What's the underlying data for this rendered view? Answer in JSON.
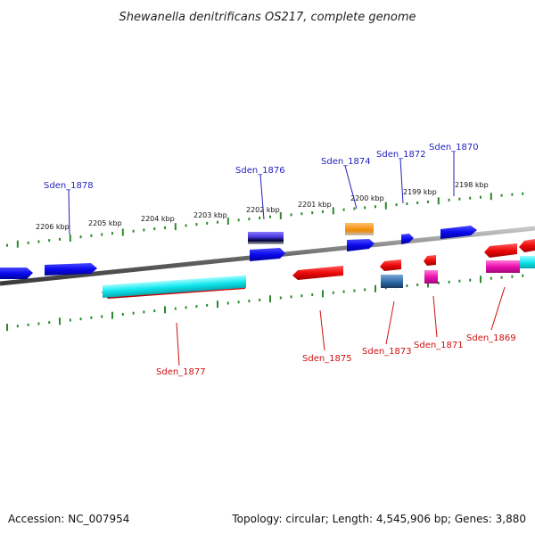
{
  "title": "Shewanella denitrificans OS217, complete genome",
  "footer": {
    "accession": "Accession: NC_007954",
    "summary": "Topology: circular; Length: 4,545,906 bp; Genes: 3,880"
  },
  "scale_ticks": [
    "2206 kbp",
    "2205 kbp",
    "2204 kbp",
    "2203 kbp",
    "2202 kbp",
    "2201 kbp",
    "2200 kbp",
    "2199 kbp",
    "2198 kbp"
  ],
  "genes_top_labels": [
    "Sden_1878",
    "Sden_1876",
    "Sden_1874",
    "Sden_1872",
    "Sden_1870"
  ],
  "genes_bottom_labels": [
    "Sden_1877",
    "Sden_1875",
    "Sden_1873",
    "Sden_1871",
    "Sden_1869"
  ],
  "colors": {
    "forward_cds": "#0a0aee",
    "reverse_cds": "#ee0a0a",
    "cyan_feature": "#10e8ee",
    "magenta_feature": "#ee10b0",
    "orange_feature": "#f08a00",
    "purple_feature": "#5a4adf",
    "steel_feature": "#3a74b0",
    "ruler": "#2a8a2a",
    "backbone": "#7a7a7a",
    "top_label": "#1f1fbf",
    "bottom_label": "#d01010"
  }
}
